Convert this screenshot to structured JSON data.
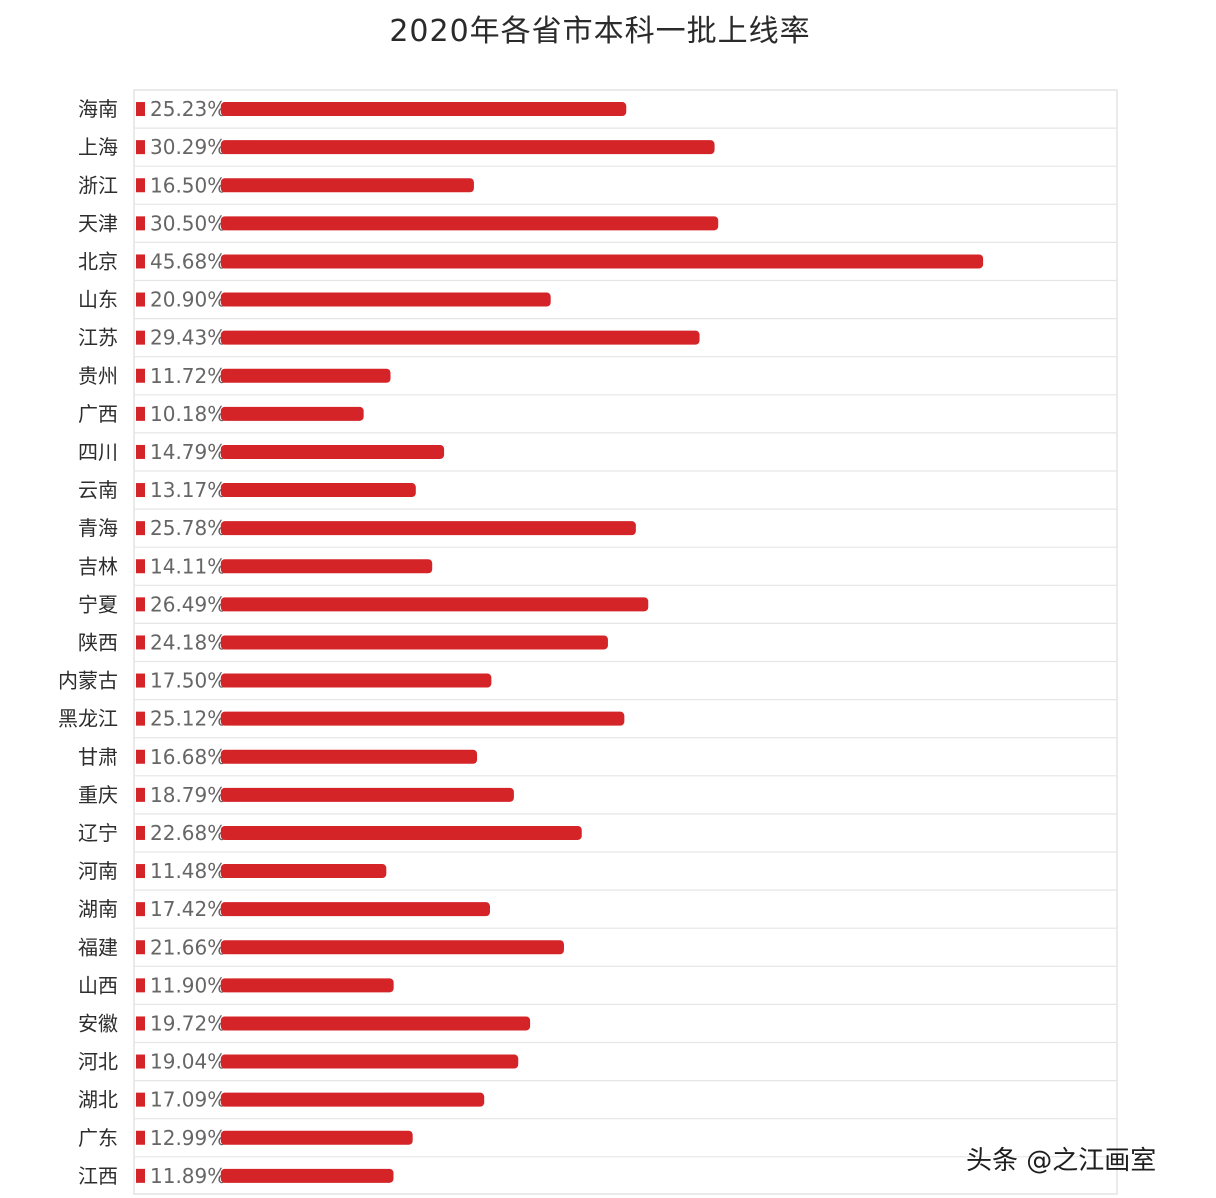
{
  "chart_data": {
    "type": "bar",
    "orientation": "horizontal",
    "title": "2020年各省市本科一批上线率",
    "xlabel": "",
    "ylabel": "",
    "unit": "%",
    "xlim": [
      0,
      50
    ],
    "grid": false,
    "legend": "none",
    "bar_color": "#d42428",
    "categories": [
      "海南",
      "上海",
      "浙江",
      "天津",
      "北京",
      "山东",
      "江苏",
      "贵州",
      "广西",
      "四川",
      "云南",
      "青海",
      "吉林",
      "宁夏",
      "陕西",
      "内蒙古",
      "黑龙江",
      "甘肃",
      "重庆",
      "辽宁",
      "河南",
      "湖南",
      "福建",
      "山西",
      "安徽",
      "河北",
      "湖北",
      "广东",
      "江西"
    ],
    "labels": [
      "25.23%",
      "30.29%",
      "16.50%",
      "30.50%",
      "45.68%",
      "20.90%",
      "29.43%",
      "11.72%",
      "10.18%",
      "14.79%",
      "13.17%",
      "25.78%",
      "14.11%",
      "26.49%",
      "24.18%",
      "17.50%",
      "25.12%",
      "16.68%",
      "18.79%",
      "22.68%",
      "11.48%",
      "17.42%",
      "21.66%",
      "11.90%",
      "19.72%",
      "19.04%",
      "17.09%",
      "12.99%",
      "11.89%"
    ],
    "values": [
      25.23,
      30.29,
      16.5,
      30.5,
      45.68,
      20.9,
      29.43,
      11.72,
      10.18,
      14.79,
      13.17,
      25.78,
      14.11,
      26.49,
      24.18,
      17.5,
      25.12,
      16.68,
      18.79,
      22.68,
      11.48,
      17.42,
      21.66,
      11.9,
      19.72,
      19.04,
      17.09,
      12.99,
      11.89
    ]
  },
  "watermark": "头条 @之江画室"
}
